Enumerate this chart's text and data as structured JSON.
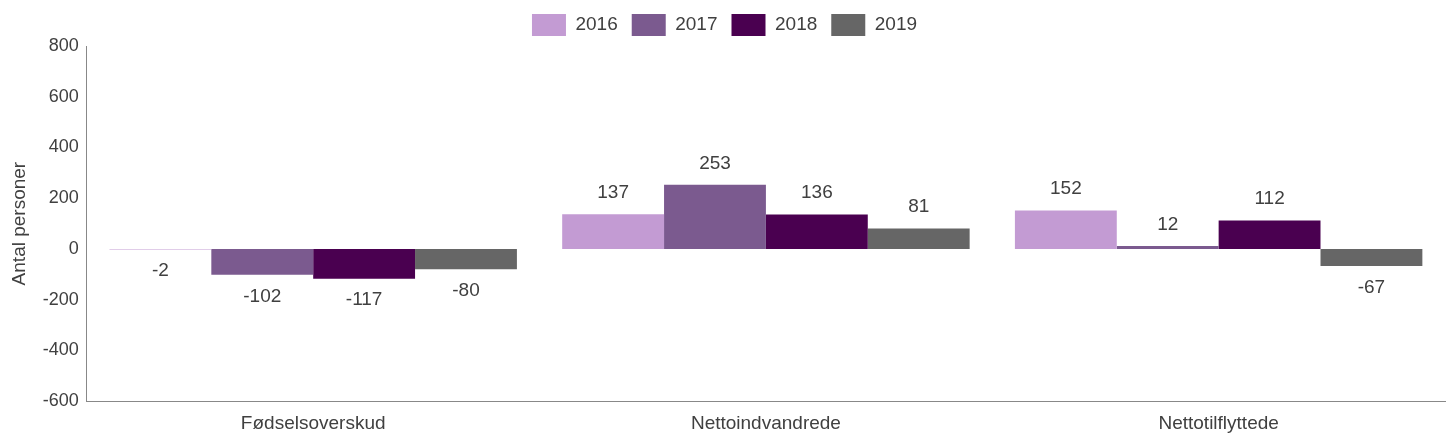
{
  "chart_data": {
    "type": "bar",
    "ylabel": "Antal personer",
    "categories": [
      "Fødselsoverskud",
      "Nettoindvandrede",
      "Nettotilflyttede"
    ],
    "series": [
      {
        "name": "2016",
        "color": "#c39bd3",
        "values": [
          -2,
          137,
          152
        ]
      },
      {
        "name": "2017",
        "color": "#7b5a8f",
        "values": [
          -102,
          253,
          12
        ]
      },
      {
        "name": "2018",
        "color": "#4a0050",
        "values": [
          -117,
          136,
          112
        ]
      },
      {
        "name": "2019",
        "color": "#666666",
        "values": [
          -80,
          81,
          -67
        ]
      }
    ],
    "ylim": [
      -600,
      800
    ],
    "yticks": [
      -600,
      -400,
      -200,
      0,
      200,
      400,
      600,
      800
    ],
    "grid": false,
    "legend": "top",
    "data_labels": true
  }
}
